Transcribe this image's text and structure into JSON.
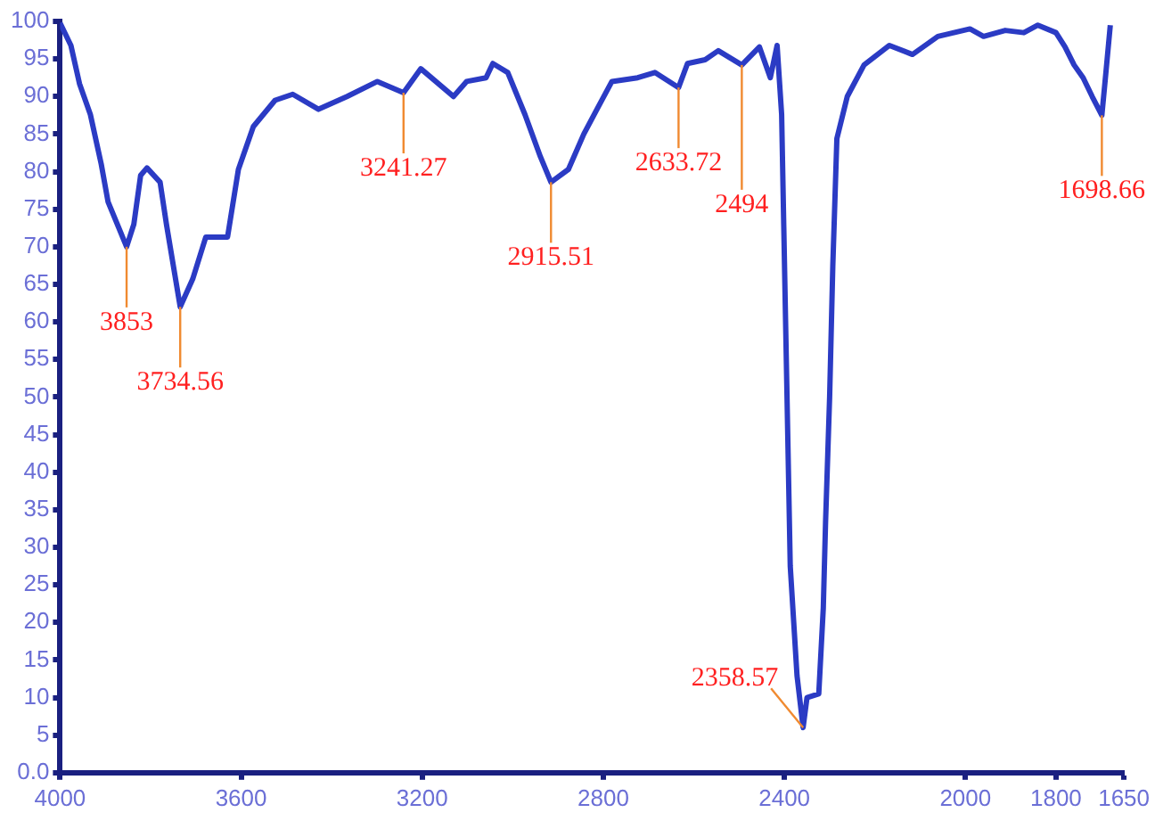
{
  "chart_data": {
    "type": "line",
    "x": [
      4000,
      3976,
      3957,
      3933,
      3909,
      3894,
      3853,
      3837,
      3822,
      3808,
      3779,
      3765,
      3734.56,
      3707,
      3678,
      3630,
      3606,
      3573,
      3525,
      3486,
      3429,
      3366,
      3299,
      3241.27,
      3203,
      3131,
      3102,
      3059,
      3044,
      3011,
      2973,
      2939,
      2915.51,
      2877,
      2843,
      2814,
      2781,
      2724,
      2686,
      2633.72,
      2614,
      2575,
      2546,
      2494,
      2455,
      2431,
      2416,
      2406,
      2387,
      2372,
      2358.57,
      2350,
      2324,
      2314,
      2309,
      2300,
      2293,
      2284,
      2261,
      2224,
      2168,
      2117,
      2061,
      1990,
      1960,
      1912,
      1871,
      1840,
      1800,
      1780,
      1760,
      1740,
      1720,
      1698.66,
      1690,
      1680
    ],
    "series": [
      {
        "color": "#2b3bc4",
        "values": [
          99.8,
          96.8,
          91.7,
          87.6,
          81,
          76,
          70,
          73,
          79.5,
          80.5,
          78.6,
          73,
          62,
          65.7,
          71.3,
          71.3,
          80.3,
          86,
          89.5,
          90.3,
          88.3,
          90,
          92,
          90.5,
          93.7,
          90,
          92,
          92.5,
          94.4,
          93.2,
          87.6,
          82,
          78.6,
          80.3,
          85,
          88.3,
          92,
          92.5,
          93.2,
          91.2,
          94.4,
          94.9,
          96.1,
          94.2,
          96.6,
          92.5,
          96.8,
          87.6,
          27.5,
          12.9,
          6,
          10,
          10.5,
          21.9,
          33.3,
          50,
          67.4,
          84.4,
          90,
          94.2,
          96.8,
          95.6,
          98,
          99,
          98,
          98.8,
          98.5,
          99.5,
          98.5,
          96.6,
          94.2,
          92.5,
          90,
          87.5,
          93,
          99.5
        ]
      }
    ],
    "xlim": [
      4000,
      1650
    ],
    "xticks": [
      4000,
      3600,
      3200,
      2800,
      2400,
      2000,
      1800,
      1650
    ],
    "ylim": [
      0,
      100
    ],
    "yticks": [
      {
        "value": 0,
        "label": "0.0"
      },
      5,
      10,
      15,
      20,
      25,
      30,
      35,
      40,
      45,
      50,
      55,
      60,
      65,
      70,
      75,
      80,
      85,
      90,
      95,
      100
    ],
    "annotations": [
      {
        "text": "3853",
        "x": 3853,
        "y": 70
      },
      {
        "text": "3734.56",
        "x": 3734.56,
        "y": 62
      },
      {
        "text": "3241.27",
        "x": 3241.27,
        "y": 90.5
      },
      {
        "text": "2915.51",
        "x": 2915.51,
        "y": 78.6
      },
      {
        "text": "2633.72",
        "x": 2633.72,
        "y": 91.2
      },
      {
        "text": "2494",
        "x": 2494,
        "y": 94.2
      },
      {
        "text": "2358.57",
        "x": 2358.57,
        "y": 6
      },
      {
        "text": "1698.66",
        "x": 1698.66,
        "y": 87.5
      }
    ]
  }
}
